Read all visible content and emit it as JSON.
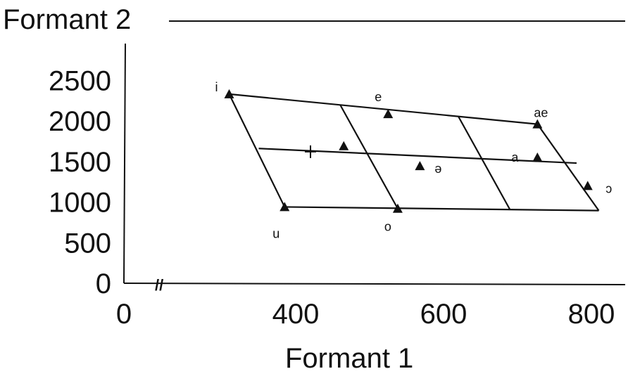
{
  "chart_data": {
    "type": "scatter",
    "title": "",
    "xlabel": "Formant 1",
    "ylabel": "Formant 2",
    "xlim": [
      0,
      800
    ],
    "ylim": [
      0,
      2500
    ],
    "x_ticks": [
      "0",
      "400",
      "600",
      "800"
    ],
    "y_ticks": [
      "0",
      "500",
      "1000",
      "1500",
      "2000",
      "2500"
    ],
    "axis_break_symbol": "//",
    "grid": false,
    "legend": "none",
    "points": [
      {
        "label": "i",
        "x": 310,
        "y": 2330
      },
      {
        "label": "e",
        "x": 525,
        "y": 2085
      },
      {
        "label": "ae",
        "x": 727,
        "y": 1960
      },
      {
        "label": "",
        "x": 465,
        "y": 1690
      },
      {
        "label": "ə",
        "x": 568,
        "y": 1445
      },
      {
        "label": "a",
        "x": 727,
        "y": 1550
      },
      {
        "label": "ɔ",
        "x": 795,
        "y": 1200
      },
      {
        "label": "u",
        "x": 385,
        "y": 940
      },
      {
        "label": "o",
        "x": 538,
        "y": 920
      }
    ],
    "cross_marker": {
      "x": 420,
      "y": 1620
    },
    "grid_lines": [
      {
        "from": [
          310,
          2330
        ],
        "to": [
          385,
          940
        ]
      },
      {
        "from": [
          310,
          2330
        ],
        "to": [
          727,
          1960
        ]
      },
      {
        "from": [
          727,
          1960
        ],
        "to": [
          810,
          895
        ]
      },
      {
        "from": [
          385,
          940
        ],
        "to": [
          810,
          895
        ]
      },
      {
        "from": [
          350,
          1660
        ],
        "to": [
          780,
          1480
        ]
      },
      {
        "from": [
          460,
          2200
        ],
        "to": [
          538,
          920
        ]
      },
      {
        "from": [
          620,
          2055
        ],
        "to": [
          690,
          905
        ]
      }
    ]
  }
}
